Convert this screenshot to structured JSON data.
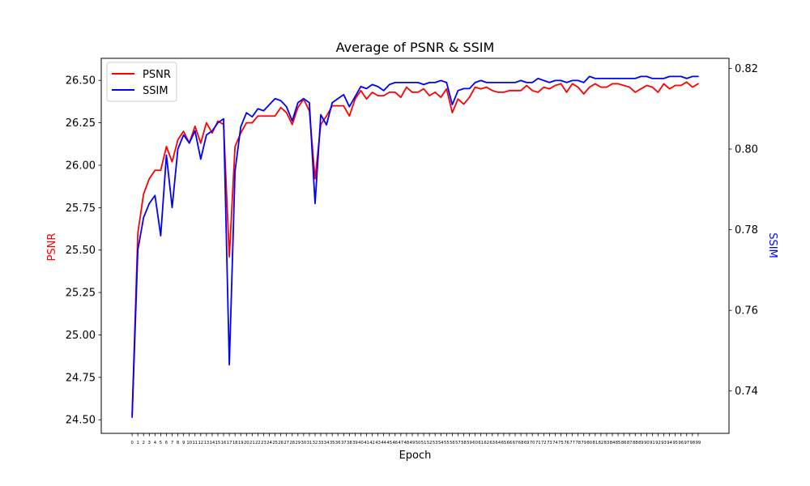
{
  "chart_data": {
    "type": "line",
    "title": "Average of PSNR & SSIM",
    "xlabel": "Epoch",
    "ylabel_left": "PSNR",
    "ylabel_right": "SSIM",
    "xlim": [
      -5.4,
      104.4
    ],
    "ylim_left": [
      24.42,
      26.63
    ],
    "ylim_right": [
      0.7295,
      0.8225
    ],
    "yticks_left": [
      24.5,
      24.75,
      25.0,
      25.25,
      25.5,
      25.75,
      26.0,
      26.25,
      26.5
    ],
    "ytick_labels_left": [
      "24.50",
      "24.75",
      "25.00",
      "25.25",
      "25.50",
      "25.75",
      "26.00",
      "26.25",
      "26.50"
    ],
    "yticks_right": [
      0.74,
      0.76,
      0.78,
      0.8,
      0.82
    ],
    "ytick_labels_right": [
      "0.74",
      "0.76",
      "0.78",
      "0.80",
      "0.82"
    ],
    "grid": false,
    "legend_position": "top-left",
    "x": [
      0,
      1,
      2,
      3,
      4,
      5,
      6,
      7,
      8,
      9,
      10,
      11,
      12,
      13,
      14,
      15,
      16,
      17,
      18,
      19,
      20,
      21,
      22,
      23,
      24,
      25,
      26,
      27,
      28,
      29,
      30,
      31,
      32,
      33,
      34,
      35,
      36,
      37,
      38,
      39,
      40,
      41,
      42,
      43,
      44,
      45,
      46,
      47,
      48,
      49,
      50,
      51,
      52,
      53,
      54,
      55,
      56,
      57,
      58,
      59,
      60,
      61,
      62,
      63,
      64,
      65,
      66,
      67,
      68,
      69,
      70,
      71,
      72,
      73,
      74,
      75,
      76,
      77,
      78,
      79,
      80,
      81,
      82,
      83,
      84,
      85,
      86,
      87,
      88,
      89,
      90,
      91,
      92,
      93,
      94,
      95,
      96,
      97,
      98,
      99
    ],
    "series": [
      {
        "name": "PSNR",
        "axis": "left",
        "color": "#ff0000",
        "values": [
          24.53,
          25.6,
          25.83,
          25.92,
          25.97,
          25.97,
          26.11,
          26.02,
          26.15,
          26.2,
          26.13,
          26.23,
          26.13,
          26.25,
          26.19,
          26.26,
          26.24,
          25.46,
          26.11,
          26.19,
          26.25,
          26.25,
          26.29,
          26.29,
          26.29,
          26.29,
          26.34,
          26.31,
          26.24,
          26.34,
          26.39,
          26.32,
          25.92,
          26.24,
          26.29,
          26.35,
          26.35,
          26.35,
          26.29,
          26.39,
          26.44,
          26.39,
          26.43,
          26.41,
          26.41,
          26.43,
          26.43,
          26.4,
          26.46,
          26.43,
          26.43,
          26.45,
          26.41,
          26.43,
          26.4,
          26.45,
          26.31,
          26.39,
          26.36,
          26.4,
          26.46,
          26.45,
          26.46,
          26.44,
          26.43,
          26.43,
          26.44,
          26.44,
          26.44,
          26.47,
          26.44,
          26.43,
          26.46,
          26.45,
          26.47,
          26.48,
          26.43,
          26.48,
          26.46,
          26.42,
          26.46,
          26.48,
          26.46,
          26.46,
          26.48,
          26.48,
          26.47,
          26.46,
          26.43,
          26.45,
          26.47,
          26.46,
          26.43,
          26.48,
          26.45,
          26.47,
          26.47,
          26.49,
          26.46,
          26.48
        ]
      },
      {
        "name": "SSIM",
        "axis": "right",
        "color": "#0000ff",
        "values": [
          0.7335,
          0.775,
          0.783,
          0.7865,
          0.7885,
          0.7785,
          0.7985,
          0.7855,
          0.8,
          0.8035,
          0.8015,
          0.8045,
          0.7975,
          0.8035,
          0.8045,
          0.8065,
          0.8075,
          0.7465,
          0.7945,
          0.8055,
          0.809,
          0.808,
          0.81,
          0.8095,
          0.811,
          0.8125,
          0.812,
          0.8105,
          0.807,
          0.8115,
          0.8125,
          0.8115,
          0.7865,
          0.8085,
          0.806,
          0.8115,
          0.8125,
          0.8135,
          0.8105,
          0.813,
          0.8155,
          0.815,
          0.816,
          0.8155,
          0.8145,
          0.816,
          0.8165,
          0.8165,
          0.8165,
          0.8165,
          0.8165,
          0.816,
          0.8165,
          0.8165,
          0.817,
          0.8165,
          0.811,
          0.8145,
          0.815,
          0.815,
          0.8165,
          0.817,
          0.8165,
          0.8165,
          0.8165,
          0.8165,
          0.8165,
          0.8165,
          0.817,
          0.8165,
          0.8165,
          0.8175,
          0.817,
          0.8165,
          0.817,
          0.817,
          0.8165,
          0.817,
          0.817,
          0.8165,
          0.818,
          0.8175,
          0.8175,
          0.8175,
          0.8175,
          0.8175,
          0.8175,
          0.8175,
          0.8175,
          0.818,
          0.818,
          0.8175,
          0.8175,
          0.8175,
          0.818,
          0.818,
          0.818,
          0.8175,
          0.818,
          0.818
        ]
      }
    ]
  }
}
